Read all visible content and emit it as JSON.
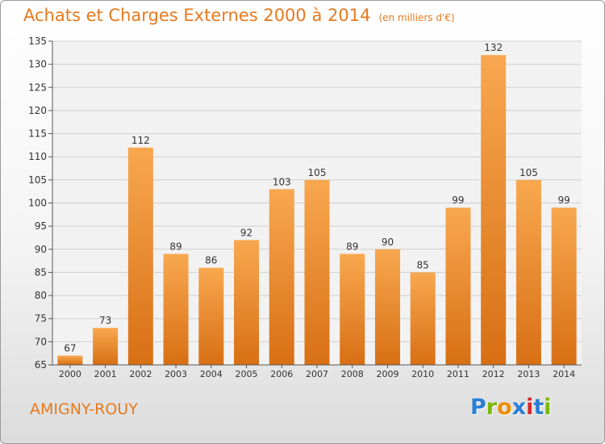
{
  "title": "Achats et Charges Externes 2000 à 2014",
  "unit": "(en milliers d'€)",
  "commune": "AMIGNY-ROUY",
  "logo": {
    "letters": [
      "P",
      "r",
      "o",
      "x",
      "i",
      "t",
      "i"
    ],
    "colors": [
      "#2a7fd4",
      "#7ab800",
      "#f08c00",
      "#2a7fd4",
      "#d6262b",
      "#2a7fd4",
      "#7ab800"
    ]
  },
  "chart_data": {
    "type": "bar",
    "title": "Achats et Charges Externes 2000 à 2014",
    "categories": [
      "2000",
      "2001",
      "2002",
      "2003",
      "2004",
      "2005",
      "2006",
      "2007",
      "2008",
      "2009",
      "2010",
      "2011",
      "2012",
      "2013",
      "2014"
    ],
    "values": [
      67,
      73,
      112,
      89,
      86,
      92,
      103,
      105,
      89,
      90,
      85,
      99,
      132,
      105,
      99
    ],
    "xlabel": "",
    "ylabel": "",
    "ylim": [
      65,
      135
    ],
    "yticks": [
      65,
      70,
      75,
      80,
      85,
      90,
      95,
      100,
      105,
      110,
      115,
      120,
      125,
      130,
      135
    ],
    "grid": true,
    "bar_color": "#f0962e",
    "data_labels": true
  }
}
